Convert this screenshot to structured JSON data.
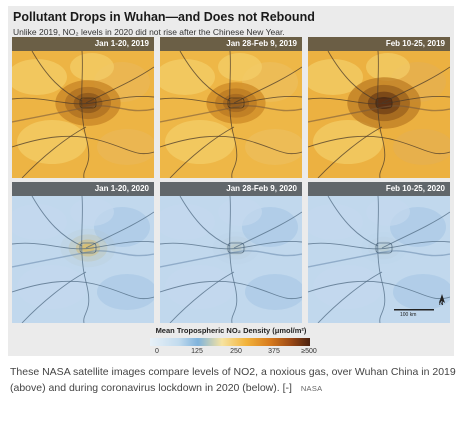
{
  "figure": {
    "title": "Pollutant Drops in Wuhan—and Does not Rebound",
    "subtitle": "Unlike 2019, NO₂ levels in 2020 did not rise after the Chinese New Year."
  },
  "panels": [
    {
      "label": "Jan 1-20, 2019",
      "year": 2019,
      "level": 0.6
    },
    {
      "label": "Jan 28-Feb 9, 2019",
      "year": 2019,
      "level": 0.45
    },
    {
      "label": "Feb 10-25, 2019",
      "year": 2019,
      "level": 0.8
    },
    {
      "label": "Jan 1-20, 2020",
      "year": 2020,
      "level": 0.35
    },
    {
      "label": "Jan 28-Feb 9, 2020",
      "year": 2020,
      "level": 0.15
    },
    {
      "label": "Feb 10-25, 2020",
      "year": 2020,
      "level": 0.12
    }
  ],
  "legend": {
    "title": "Mean Tropospheric NO₂ Density (μmol/m²)",
    "ticks": [
      "0",
      "125",
      "250",
      "375",
      "≥500"
    ]
  },
  "scale_label": "100 km",
  "north_label": "N",
  "caption": {
    "text": "These NASA satellite images compare levels of NO2, a noxious gas, over Wuhan China in 2019 (above) and during coronavirus lockdown in 2020 (below).",
    "more": "[-]",
    "credit": "NASA"
  },
  "colors": {
    "low": "#bcd4ea",
    "mid": "#f2b33b",
    "high": "#4b2210"
  }
}
